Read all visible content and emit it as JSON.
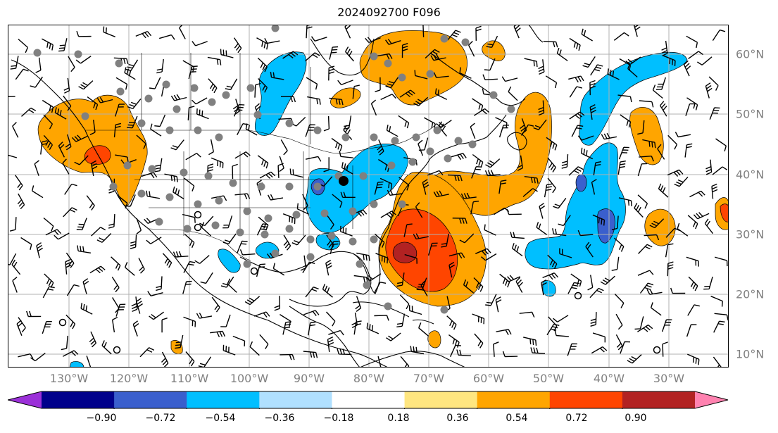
{
  "title": "2024092700 F096",
  "longitude_labels": [
    "130°W",
    "120°W",
    "110°W",
    "100°W",
    "90°W",
    "80°W",
    "70°W",
    "60°W",
    "50°W",
    "40°W",
    "30°W"
  ],
  "latitude_labels": [
    "60°N",
    "50°N",
    "40°N",
    "30°N",
    "20°N",
    "10°N"
  ],
  "colorbar": {
    "tick_labels": [
      "−0.90",
      "−0.72",
      "−0.54",
      "−0.36",
      "−0.18",
      "0.18",
      "0.36",
      "0.54",
      "0.72",
      "0.90"
    ],
    "colors": [
      "#9b30d8",
      "#00008b",
      "#3a5fcd",
      "#00bfff",
      "#b0e0ff",
      "#ffffff",
      "#ffe680",
      "#ffa500",
      "#ff4500",
      "#b22222",
      "#ff82b0"
    ]
  },
  "contour_colors": {
    "weak_positive": "#ffa500",
    "strong_positive": "#ff4500",
    "strongest_positive": "#b22222",
    "weak_negative": "#00bfff",
    "strong_negative": "#3a5fcd"
  },
  "gridline_color": "#b0b0b0",
  "station_marker_color": "#808080"
}
